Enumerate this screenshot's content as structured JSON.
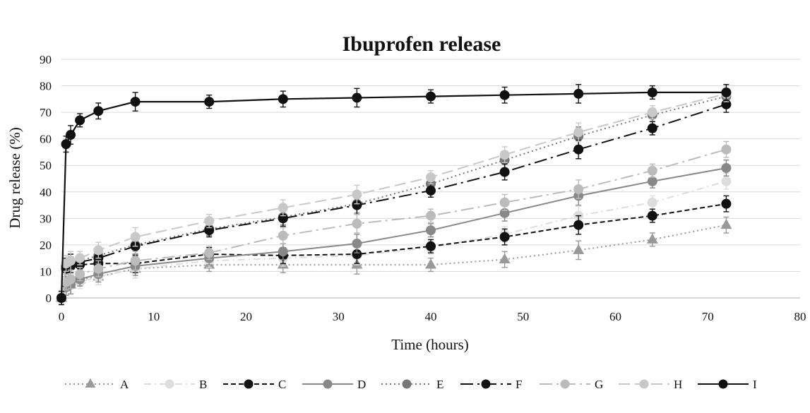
{
  "chart_data": {
    "type": "line",
    "title": "Ibuprofen release",
    "xlabel": "Time (hours)",
    "ylabel": "Drug release (%)",
    "xlim": [
      0,
      80
    ],
    "ylim": [
      0,
      90
    ],
    "xticks": [
      "0",
      "10",
      "20",
      "30",
      "40",
      "50",
      "60",
      "70",
      "80"
    ],
    "yticks": [
      "0",
      "10",
      "20",
      "30",
      "40",
      "50",
      "60",
      "70",
      "80",
      "90"
    ],
    "grid": "horizontal",
    "legend": "bottom",
    "x": [
      0,
      0.5,
      1,
      2,
      4,
      8,
      16,
      24,
      32,
      40,
      48,
      56,
      64,
      72
    ],
    "series": [
      {
        "name": "A",
        "color": "#999999",
        "dash": "dotted",
        "marker": "triangle",
        "values": [
          0,
          4,
          5,
          7,
          8,
          11,
          12.5,
          12.5,
          12.5,
          12.5,
          14.5,
          18,
          22,
          27.5
        ]
      },
      {
        "name": "B",
        "color": "#dddddd",
        "dash": "dashdot",
        "marker": "circle",
        "values": [
          0,
          4,
          5,
          6,
          8,
          11,
          14,
          15,
          16,
          19,
          24,
          31,
          36,
          44
        ]
      },
      {
        "name": "C",
        "color": "#111111",
        "dash": "dashed",
        "marker": "circle",
        "values": [
          0,
          11,
          12,
          12.5,
          13,
          13,
          16.5,
          16,
          16.5,
          19.5,
          23,
          27.5,
          31,
          35.5
        ]
      },
      {
        "name": "D",
        "color": "#888888",
        "dash": "solid",
        "marker": "circle",
        "values": [
          0,
          4,
          5,
          7,
          9,
          12,
          15,
          17.5,
          20.5,
          25.5,
          32,
          38.5,
          44,
          49
        ]
      },
      {
        "name": "E",
        "color": "#777777",
        "dash": "dotted",
        "marker": "circle",
        "values": [
          0,
          12,
          13,
          14,
          16,
          20,
          26,
          30.5,
          35.5,
          43,
          52,
          61,
          69,
          76
        ]
      },
      {
        "name": "F",
        "color": "#111111",
        "dash": "longdashdot",
        "marker": "circle",
        "values": [
          0,
          12,
          13,
          13.5,
          15,
          19.5,
          25.5,
          30,
          35,
          40.5,
          47.5,
          56,
          64,
          73
        ]
      },
      {
        "name": "G",
        "color": "#bbbbbb",
        "dash": "longdashdot",
        "marker": "circle",
        "values": [
          0,
          6,
          7,
          9,
          11,
          14,
          17,
          23.5,
          28,
          31,
          36,
          41,
          48,
          56
        ]
      },
      {
        "name": "H",
        "color": "#c8c8c8",
        "dash": "longdash",
        "marker": "circle",
        "values": [
          0,
          13,
          14,
          15,
          18,
          23,
          29,
          34,
          39,
          45.5,
          54,
          62.5,
          70,
          77
        ]
      },
      {
        "name": "I",
        "color": "#111111",
        "dash": "solid",
        "marker": "circle",
        "values": [
          0,
          58,
          61.5,
          67,
          70.5,
          74,
          74,
          75,
          75.5,
          76,
          76.5,
          77,
          77.5,
          77.5
        ]
      }
    ]
  }
}
